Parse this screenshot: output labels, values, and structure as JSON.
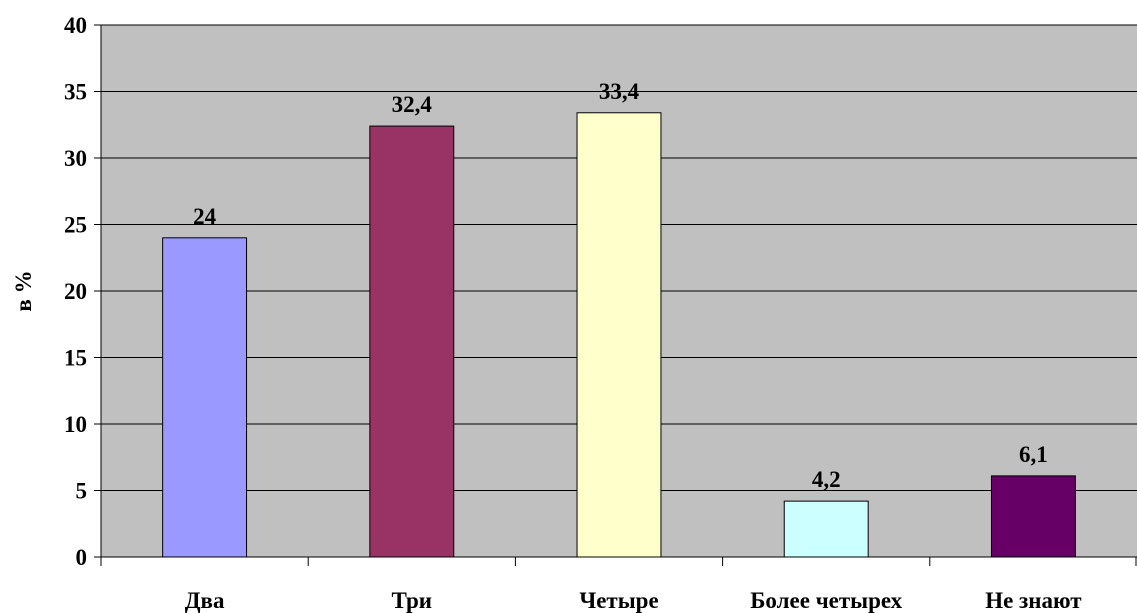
{
  "chart_data": {
    "type": "bar",
    "categories": [
      "Два",
      "Три",
      "Четыре",
      "Более четырех",
      "Не знают"
    ],
    "values": [
      24,
      32.4,
      33.4,
      4.2,
      6.1
    ],
    "value_labels": [
      "24",
      "32,4",
      "33,4",
      "4,2",
      "6,1"
    ],
    "bar_colors": [
      "#9999ff",
      "#993366",
      "#ffffcc",
      "#ccffff",
      "#660066"
    ],
    "title": "",
    "xlabel": "",
    "ylabel": "в %",
    "ylim": [
      0,
      40
    ],
    "yticks": [
      0,
      5,
      10,
      15,
      20,
      25,
      30,
      35,
      40
    ],
    "ytick_labels": [
      "0",
      "5",
      "10",
      "15",
      "20",
      "25",
      "30",
      "35",
      "40"
    ],
    "grid": "horizontal",
    "legend": "none",
    "plot_background": "#c0c0c0"
  }
}
